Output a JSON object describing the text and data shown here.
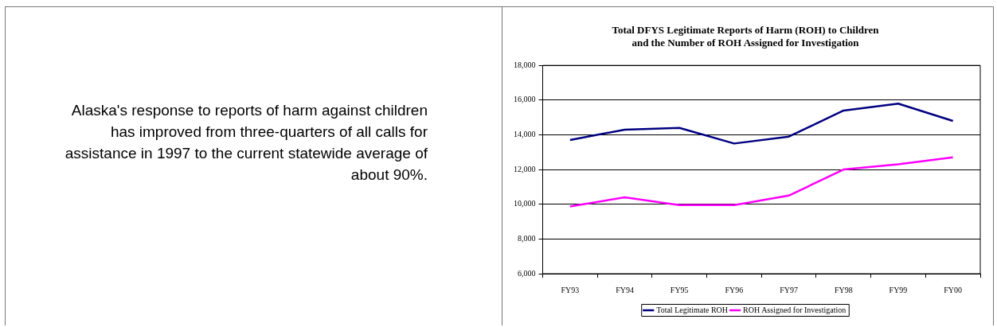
{
  "chart_data": [
    {
      "type": "other",
      "annotations": [
        "Alaska's response to reports of harm against children has improved from three-quarters of all calls for assistance in 1997 to the current statewide average of about 90%."
      ]
    },
    {
      "type": "line",
      "title": "Total DFYS Legitimate Reports of Harm (ROH) to Children and the Number of ROH Assigned for Investigation",
      "categories": [
        "FY93",
        "FY94",
        "FY95",
        "FY96",
        "FY97",
        "FY98",
        "FY99",
        "FY00"
      ],
      "series": [
        {
          "name": "Total Legitimate ROH",
          "color": "#000080",
          "values": [
            13700,
            14300,
            14400,
            13500,
            13900,
            15400,
            15800,
            14800
          ]
        },
        {
          "name": "ROH Assigned for Investigation",
          "color": "#ff00ff",
          "values": [
            9870,
            10400,
            9950,
            9950,
            10500,
            12000,
            12300,
            12700
          ]
        }
      ],
      "ylim": [
        6000,
        18000
      ],
      "yticks": [
        {
          "value": 6000,
          "label": "6,000"
        },
        {
          "value": 8000,
          "label": "8,000"
        },
        {
          "value": 10000,
          "label": "10,000"
        },
        {
          "value": 12000,
          "label": "12,000"
        },
        {
          "value": 14000,
          "label": "14,000"
        },
        {
          "value": 16000,
          "label": "16,000"
        },
        {
          "value": 18000,
          "label": "18,000"
        }
      ],
      "grid": "y",
      "legend": "bottom"
    }
  ]
}
